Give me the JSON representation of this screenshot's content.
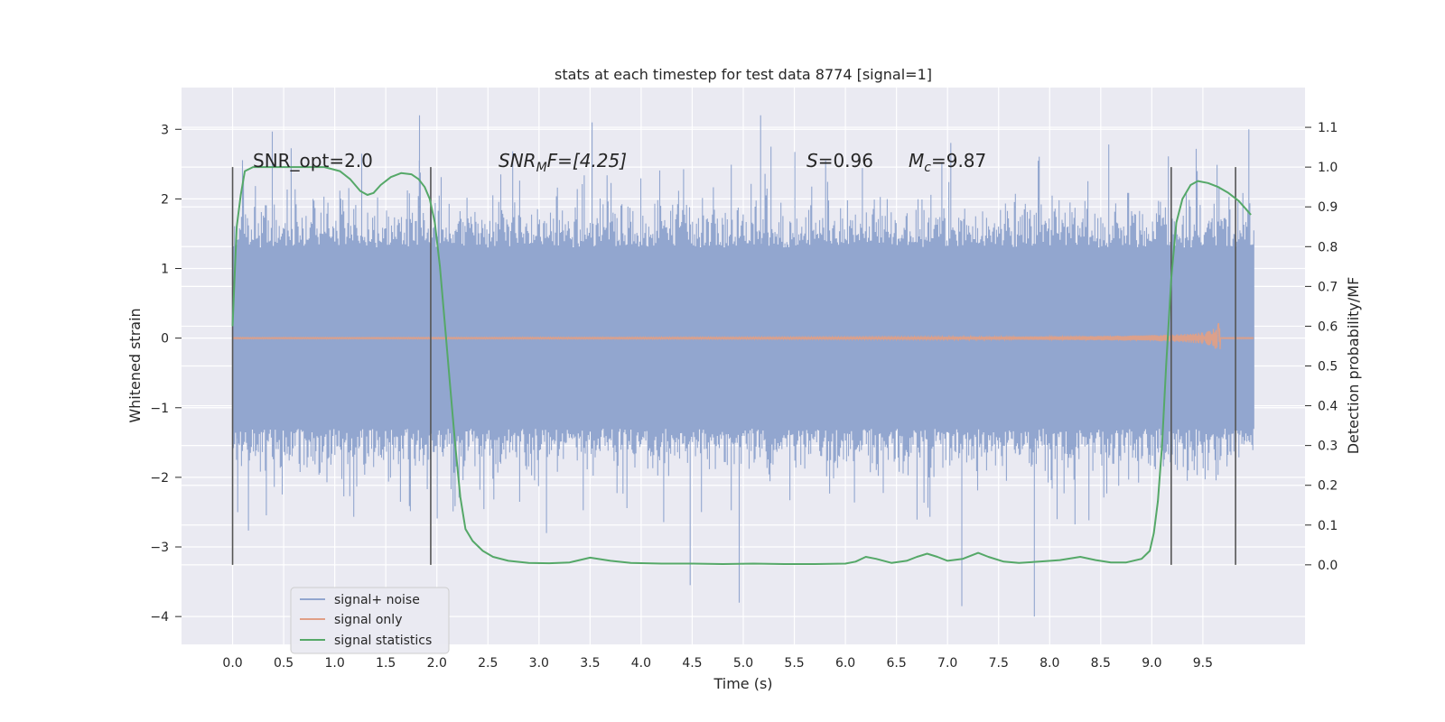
{
  "chart_data": {
    "type": "line",
    "title": "stats at each timestep for test data 8774 [signal=1]",
    "xlabel": "Time (s)",
    "ylabel_left": "Whitened strain",
    "ylabel_right": "Detection probability/MF",
    "xlim": [
      -0.5,
      10.5
    ],
    "ylim_left": [
      -4.4,
      3.6
    ],
    "ylim_right": [
      -0.2,
      1.2
    ],
    "x_ticks": [
      0.0,
      0.5,
      1.0,
      1.5,
      2.0,
      2.5,
      3.0,
      3.5,
      4.0,
      4.5,
      5.0,
      5.5,
      6.0,
      6.5,
      7.0,
      7.5,
      8.0,
      8.5,
      9.0,
      9.5
    ],
    "x_tick_labels": [
      "0.0",
      "0.5",
      "1.0",
      "1.5",
      "2.0",
      "2.5",
      "3.0",
      "3.5",
      "4.0",
      "4.5",
      "5.0",
      "5.5",
      "6.0",
      "6.5",
      "7.0",
      "7.5",
      "8.0",
      "8.5",
      "9.0",
      "9.5"
    ],
    "y_left_ticks": [
      -4,
      -3,
      -2,
      -1,
      0,
      1,
      2,
      3
    ],
    "y_left_tick_labels": [
      "−4",
      "−3",
      "−2",
      "−1",
      "0",
      "1",
      "2",
      "3"
    ],
    "y_right_ticks": [
      0.0,
      0.1,
      0.2,
      0.3,
      0.4,
      0.5,
      0.6,
      0.7,
      0.8,
      0.9,
      1.0,
      1.1
    ],
    "y_right_tick_labels": [
      "0.0",
      "0.1",
      "0.2",
      "0.3",
      "0.4",
      "0.5",
      "0.6",
      "0.7",
      "0.8",
      "0.9",
      "1.0",
      "1.1"
    ],
    "grid": true,
    "legend_position": "lower-left",
    "annotations": {
      "snr_opt": "SNR_opt=2.0",
      "snr_mf_name": "SNR",
      "snr_mf_sub": "M",
      "snr_mf_rest": "F=[4.25]",
      "s_name": "S",
      "s_rest": "=0.96",
      "mc_name": "M",
      "mc_sub": "c",
      "mc_rest": "=9.87"
    },
    "vertical_markers_x": [
      0.0,
      1.94,
      9.19,
      9.82
    ],
    "vertical_markers_yrange": [
      0.0,
      1.0
    ],
    "series": [
      {
        "name": "signal+ noise",
        "color": "#92a6cf",
        "kind": "noise",
        "x_range": [
          0.0,
          10.0
        ],
        "core_amplitude": 1.3,
        "spike_max": 3.2,
        "spike_min": -4.0
      },
      {
        "name": "signal only",
        "color": "#e09f86",
        "kind": "chirp",
        "x_range": [
          0.0,
          10.0
        ],
        "peak_x": 9.67,
        "peak_amplitude": 0.3
      },
      {
        "name": "signal statistics",
        "color": "#55a868",
        "kind": "line",
        "axis": "right",
        "x": [
          0.0,
          0.04,
          0.08,
          0.12,
          0.2,
          0.3,
          0.5,
          0.7,
          0.9,
          1.05,
          1.15,
          1.25,
          1.32,
          1.38,
          1.45,
          1.55,
          1.65,
          1.75,
          1.82,
          1.88,
          1.93,
          1.98,
          2.03,
          2.08,
          2.13,
          2.18,
          2.23,
          2.28,
          2.35,
          2.45,
          2.55,
          2.7,
          2.9,
          3.1,
          3.3,
          3.5,
          3.7,
          3.9,
          4.2,
          4.5,
          4.8,
          5.1,
          5.4,
          5.7,
          6.0,
          6.1,
          6.2,
          6.3,
          6.45,
          6.6,
          6.7,
          6.8,
          6.9,
          7.0,
          7.15,
          7.3,
          7.4,
          7.55,
          7.7,
          7.9,
          8.1,
          8.3,
          8.45,
          8.6,
          8.75,
          8.9,
          8.98,
          9.02,
          9.06,
          9.1,
          9.14,
          9.19,
          9.24,
          9.3,
          9.38,
          9.45,
          9.55,
          9.65,
          9.75,
          9.85,
          9.92,
          9.97
        ],
        "y": [
          0.6,
          0.85,
          0.93,
          0.99,
          1.0,
          1.0,
          1.0,
          1.0,
          1.0,
          0.99,
          0.97,
          0.94,
          0.93,
          0.935,
          0.955,
          0.975,
          0.985,
          0.982,
          0.97,
          0.95,
          0.92,
          0.86,
          0.75,
          0.6,
          0.45,
          0.3,
          0.17,
          0.09,
          0.06,
          0.035,
          0.02,
          0.01,
          0.005,
          0.004,
          0.006,
          0.018,
          0.01,
          0.005,
          0.003,
          0.003,
          0.002,
          0.003,
          0.002,
          0.002,
          0.003,
          0.008,
          0.02,
          0.015,
          0.005,
          0.01,
          0.02,
          0.028,
          0.02,
          0.01,
          0.015,
          0.03,
          0.02,
          0.008,
          0.005,
          0.008,
          0.012,
          0.02,
          0.012,
          0.006,
          0.006,
          0.015,
          0.035,
          0.08,
          0.16,
          0.3,
          0.5,
          0.72,
          0.86,
          0.92,
          0.955,
          0.965,
          0.96,
          0.95,
          0.935,
          0.915,
          0.895,
          0.88
        ]
      }
    ]
  }
}
